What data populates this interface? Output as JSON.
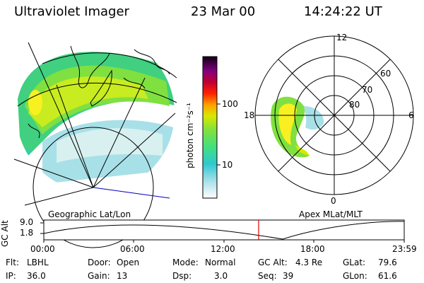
{
  "header": {
    "instrument": "Ultraviolet Imager",
    "date": "23 Mar 00",
    "time": "14:24:22 UT"
  },
  "colorbar": {
    "unit_label": "photon cm⁻²s⁻¹",
    "ticks": [
      "100",
      "10"
    ]
  },
  "geo_panel": {
    "label": "Geographic Lat/Lon"
  },
  "polar_panel": {
    "label": "Apex MLat/MLT",
    "mlt_labels": [
      "12",
      "18",
      "6",
      "0"
    ],
    "lat_labels": [
      "60",
      "70",
      "80"
    ]
  },
  "altitude_plot": {
    "ylabel": "GC Alt",
    "yticks": [
      "9.0",
      "1.8"
    ],
    "xticks": [
      "00:00",
      "06:00",
      "12:00",
      "18:00",
      "23:59"
    ],
    "current_marker_color": "#e00000"
  },
  "status": {
    "filter_label": "Flt:",
    "filter_value": "LBHL",
    "ip_label": "IP:",
    "ip_value": "36.0",
    "door_label": "Door:",
    "door_value": "Open",
    "gain_label": "Gain:",
    "gain_value": "13",
    "mode_label": "Mode:",
    "mode_value": "Normal",
    "dsp_label": "Dsp:",
    "dsp_value": "3.0",
    "gcalt_label": "GC Alt:",
    "gcalt_value": "4.3 Re",
    "seq_label": "Seq:",
    "seq_value": "39",
    "glat_label": "GLat:",
    "glat_value": "79.6",
    "glon_label": "GLon:",
    "glon_value": "61.6"
  }
}
